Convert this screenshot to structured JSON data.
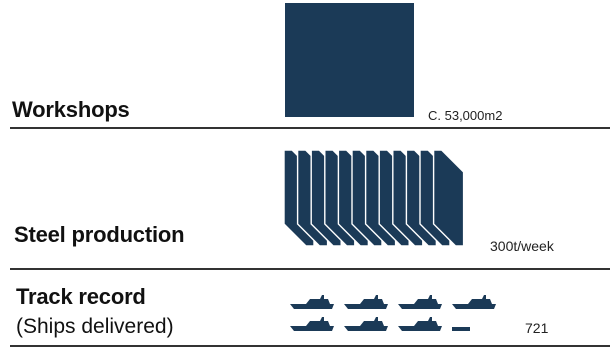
{
  "colors": {
    "accent": "#1b3a57",
    "text": "#111111",
    "rule": "#333333"
  },
  "rows": [
    {
      "label": "Workshops",
      "value": "C. 53,000m2",
      "icon": "area-square-icon"
    },
    {
      "label": "Steel production",
      "value": "300t/week",
      "icon": "steel-plates-icon",
      "plates": 12
    },
    {
      "label": "Track record",
      "sublabel": "(Ships delivered)",
      "value": "721",
      "icon": "ship-icon",
      "ships_full": 7,
      "ships_partial": 1
    }
  ]
}
